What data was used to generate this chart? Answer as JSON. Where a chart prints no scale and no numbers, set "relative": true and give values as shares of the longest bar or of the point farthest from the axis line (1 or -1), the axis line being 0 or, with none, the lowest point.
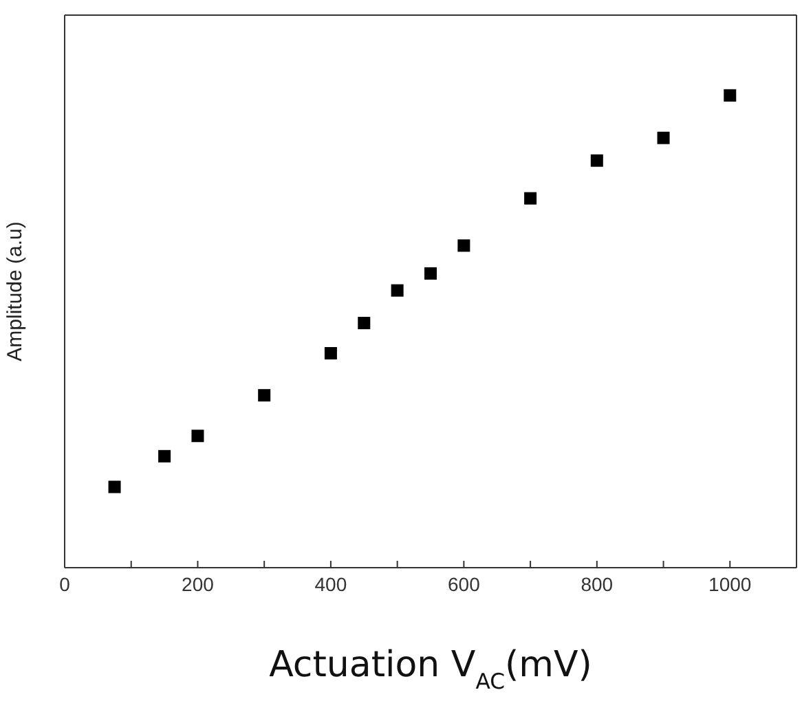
{
  "chart_data": {
    "type": "scatter",
    "xlabel": "Actuation V$_{AC}$(mV)",
    "ylabel": "Amplitude (a.u)",
    "relative": true,
    "marker": "square",
    "x": [
      75,
      150,
      200,
      300,
      400,
      450,
      500,
      550,
      600,
      700,
      800,
      900,
      1000
    ],
    "series": [
      {
        "color": "#000000",
        "values": [
          0.171,
          0.236,
          0.279,
          0.365,
          0.454,
          0.518,
          0.587,
          0.623,
          0.682,
          0.782,
          0.862,
          0.91,
          1
        ]
      }
    ],
    "xlim": [
      0,
      1100
    ],
    "xticks": [
      0,
      {
        "value": 100,
        "label": null
      },
      200,
      {
        "value": 300,
        "label": null
      },
      400,
      {
        "value": 500,
        "label": null
      },
      600,
      {
        "value": 700,
        "label": null
      },
      800,
      {
        "value": 900,
        "label": null
      },
      1000
    ],
    "grid": false,
    "legend": false
  }
}
